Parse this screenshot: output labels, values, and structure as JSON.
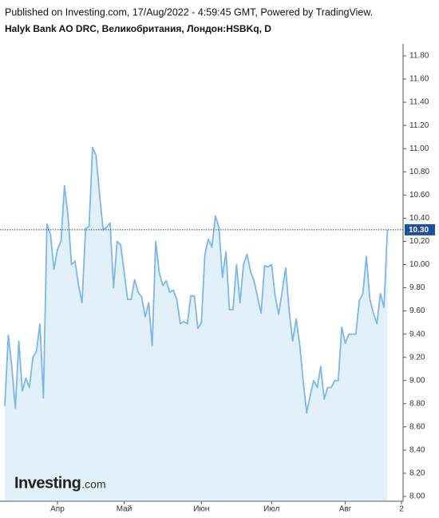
{
  "header": {
    "published": "Published on Investing.com, 17/Aug/2022 - 4:59:45 GMT, Powered by TradingView."
  },
  "chart_data": {
    "type": "area",
    "title": "Halyk Bank AO DRC, Великобритания, Лондон:HSBKq, D",
    "watermark": "Investing",
    "watermark_suffix": ".com",
    "color": "#7db7ea",
    "fill": "#e2f0fa",
    "categories": [
      null,
      null,
      null,
      null,
      null,
      null,
      null,
      null,
      null,
      null,
      null,
      null,
      null,
      null,
      null,
      "Апр",
      null,
      null,
      null,
      null,
      null,
      null,
      null,
      null,
      null,
      null,
      null,
      null,
      null,
      null,
      null,
      null,
      null,
      null,
      "Май",
      null,
      null,
      null,
      null,
      null,
      null,
      null,
      null,
      null,
      null,
      null,
      null,
      null,
      null,
      null,
      null,
      null,
      null,
      null,
      null,
      null,
      "Июн",
      null,
      null,
      null,
      null,
      null,
      null,
      null,
      null,
      null,
      null,
      null,
      null,
      null,
      null,
      null,
      null,
      null,
      null,
      null,
      "Июл",
      null,
      null,
      null,
      null,
      null,
      null,
      null,
      null,
      null,
      null,
      null,
      null,
      null,
      null,
      null,
      null,
      null,
      null,
      null,
      null,
      "Авг",
      null,
      null,
      null,
      null,
      null,
      null,
      null,
      null,
      null,
      null,
      null,
      null,
      null,
      null,
      null,
      "2"
    ],
    "values": [
      8.78,
      9.39,
      9.12,
      8.76,
      9.34,
      8.91,
      9.02,
      8.94,
      9.2,
      9.25,
      9.49,
      8.85,
      10.35,
      10.26,
      9.96,
      10.13,
      10.2,
      10.68,
      10.42,
      10.0,
      10.03,
      9.82,
      9.67,
      10.31,
      10.33,
      11.01,
      10.94,
      10.6,
      10.3,
      10.32,
      10.36,
      9.8,
      10.2,
      10.17,
      9.94,
      9.7,
      9.7,
      9.87,
      9.76,
      9.72,
      9.55,
      9.67,
      9.3,
      10.2,
      9.93,
      9.82,
      9.86,
      9.76,
      9.78,
      9.7,
      9.49,
      9.51,
      9.49,
      9.73,
      9.73,
      9.45,
      9.5,
      10.09,
      10.22,
      10.15,
      10.42,
      10.32,
      9.89,
      10.11,
      9.61,
      9.61,
      10.0,
      9.67,
      10.0,
      10.09,
      9.94,
      9.86,
      9.72,
      9.58,
      9.99,
      9.98,
      10.0,
      9.73,
      9.57,
      9.77,
      9.97,
      9.6,
      9.34,
      9.53,
      9.31,
      9.0,
      8.72,
      8.87,
      9.0,
      8.94,
      9.12,
      8.84,
      8.94,
      8.94,
      9.0,
      9.0,
      9.46,
      9.32,
      9.4,
      9.4,
      9.4,
      9.69,
      9.75,
      10.07,
      9.7,
      9.58,
      9.49,
      9.75,
      9.63,
      10.3,
      null,
      null,
      null,
      null
    ],
    "value_labels": [
      null,
      null,
      null,
      null,
      null,
      null,
      null,
      null,
      null,
      null,
      null,
      null,
      null,
      null,
      null,
      null,
      null,
      null,
      null,
      null,
      null,
      null,
      null,
      null,
      null,
      null,
      null,
      null,
      null,
      null,
      null,
      null,
      null,
      null,
      null,
      null,
      null,
      null,
      null,
      null,
      null,
      null,
      null,
      null,
      null,
      null,
      null,
      null,
      null,
      null,
      null,
      null,
      null,
      null,
      null,
      null,
      null,
      null,
      null,
      null,
      null,
      null,
      null,
      null,
      null,
      null,
      null,
      null,
      null,
      null,
      null,
      null,
      null,
      null,
      null,
      null,
      null,
      null,
      null,
      null,
      null,
      null,
      null,
      null,
      null,
      null,
      null,
      null,
      null,
      null,
      null,
      null,
      null,
      null,
      null,
      null,
      null,
      null,
      null,
      null,
      null,
      null,
      null,
      null,
      null,
      null,
      null,
      null,
      null,
      "10.30",
      null,
      null,
      null,
      null
    ],
    "ylim": [
      8.0,
      11.8
    ],
    "yticks": [
      {
        "value": 8.0,
        "label": "8.00"
      },
      {
        "value": 8.2,
        "label": "8.20"
      },
      {
        "value": 8.4,
        "label": "8.40"
      },
      {
        "value": 8.6,
        "label": "8.60"
      },
      {
        "value": 8.8,
        "label": "8.80"
      },
      {
        "value": 9.0,
        "label": "9.00"
      },
      {
        "value": 9.2,
        "label": "9.20"
      },
      {
        "value": 9.4,
        "label": "9.40"
      },
      {
        "value": 9.6,
        "label": "9.60"
      },
      {
        "value": 9.8,
        "label": "9.80"
      },
      {
        "value": 10.0,
        "label": "10.00"
      },
      {
        "value": 10.2,
        "label": "10.20"
      },
      {
        "value": 10.4,
        "label": "10.40"
      },
      {
        "value": 10.6,
        "label": "10.60"
      },
      {
        "value": 10.8,
        "label": "10.80"
      },
      {
        "value": 11.0,
        "label": "11.00"
      },
      {
        "value": 11.2,
        "label": "11.20"
      },
      {
        "value": 11.4,
        "label": "11.40"
      },
      {
        "value": 11.6,
        "label": "11.60"
      },
      {
        "value": 11.8,
        "label": "11.80"
      }
    ]
  }
}
